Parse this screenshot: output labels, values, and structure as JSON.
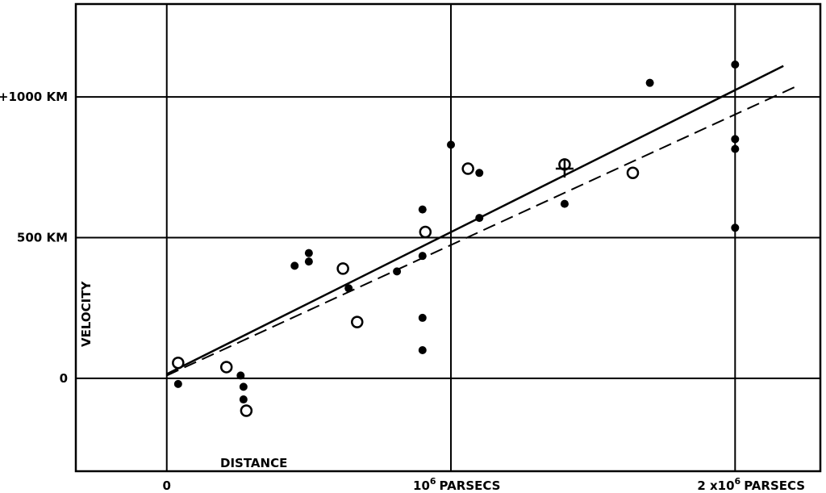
{
  "chart_data": {
    "type": "scatter",
    "title": "",
    "xlabel": "DISTANCE",
    "ylabel": "VELOCITY",
    "xlim": [
      -0.32,
      2.3
    ],
    "ylim": [
      -330,
      1330
    ],
    "grid": true,
    "x_ticks": [
      {
        "value": 0,
        "label": "0",
        "sup": ""
      },
      {
        "value": 1,
        "label": "10",
        "sup": "6",
        "suffix": "PARSECS"
      },
      {
        "value": 2,
        "label": "2 x10",
        "sup": "6",
        "suffix": "PARSECS"
      }
    ],
    "y_ticks": [
      {
        "value": 0,
        "label": "0"
      },
      {
        "value": 500,
        "label": "500 KM"
      },
      {
        "value": 1000,
        "label": "+1000 KM"
      }
    ],
    "series": [
      {
        "marker": "filled-circle",
        "points": [
          [
            0.04,
            -20
          ],
          [
            0.21,
            40
          ],
          [
            0.26,
            10
          ],
          [
            0.27,
            -30
          ],
          [
            0.27,
            -75
          ],
          [
            0.45,
            400
          ],
          [
            0.5,
            415
          ],
          [
            0.5,
            445
          ],
          [
            0.64,
            320
          ],
          [
            0.81,
            380
          ],
          [
            0.9,
            600
          ],
          [
            0.9,
            435
          ],
          [
            0.9,
            215
          ],
          [
            0.9,
            100
          ],
          [
            1.0,
            830
          ],
          [
            1.1,
            730
          ],
          [
            1.1,
            570
          ],
          [
            1.4,
            620
          ],
          [
            1.7,
            1050
          ],
          [
            2.0,
            1115
          ],
          [
            2.0,
            850
          ],
          [
            2.0,
            815
          ],
          [
            2.0,
            535
          ]
        ]
      },
      {
        "marker": "open-circle",
        "points": [
          [
            0.04,
            55
          ],
          [
            0.21,
            40
          ],
          [
            0.28,
            -115
          ],
          [
            0.62,
            390
          ],
          [
            0.67,
            200
          ],
          [
            0.91,
            520
          ],
          [
            1.06,
            745
          ],
          [
            1.4,
            760
          ],
          [
            1.64,
            730
          ]
        ]
      },
      {
        "marker": "cross",
        "points": [
          [
            1.4,
            745
          ]
        ]
      }
    ],
    "lines": [
      {
        "style": "solid",
        "from": [
          0,
          15
        ],
        "to": [
          2.17,
          1110
        ]
      },
      {
        "style": "dashed",
        "from": [
          0,
          10
        ],
        "to": [
          2.21,
          1035
        ]
      }
    ]
  }
}
